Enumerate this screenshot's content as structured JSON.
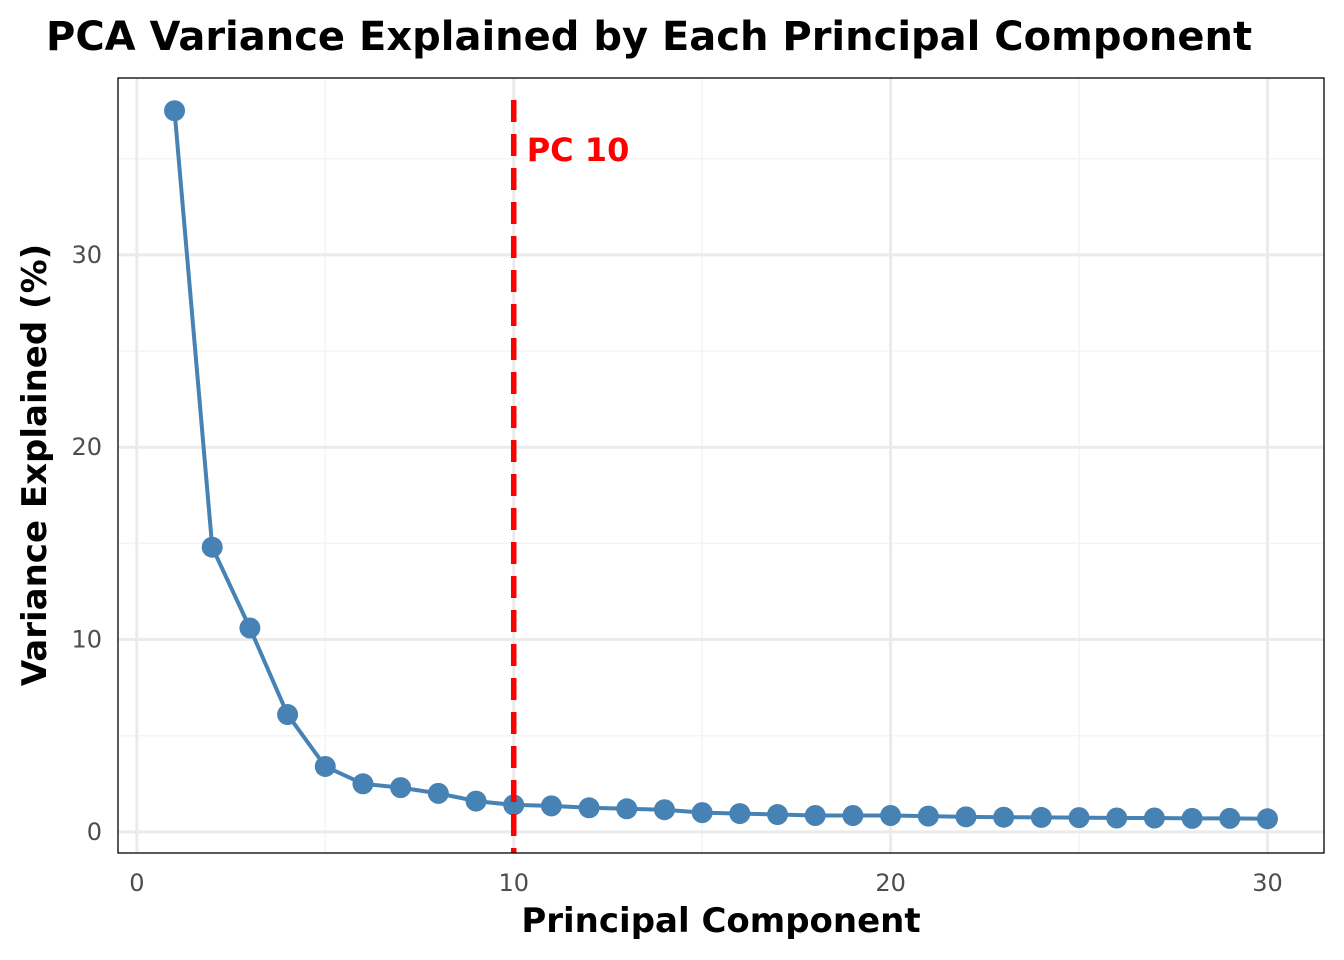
{
  "chart_data": {
    "type": "line",
    "title": "PCA Variance Explained by Each Principal Component",
    "xlabel": "Principal Component",
    "ylabel": "Variance Explained (%)",
    "xlim": [
      -0.5,
      31.5
    ],
    "ylim": [
      -1.1,
      39.2
    ],
    "xticks": [
      0,
      10,
      20,
      30
    ],
    "yticks": [
      0,
      10,
      20,
      30
    ],
    "grid": true,
    "legend": "none",
    "series": [
      {
        "color": "#4682b4",
        "x": [
          1,
          2,
          3,
          4,
          5,
          6,
          7,
          8,
          9,
          10,
          11,
          12,
          13,
          14,
          15,
          16,
          17,
          18,
          19,
          20,
          21,
          22,
          23,
          24,
          25,
          26,
          27,
          28,
          29,
          30
        ],
        "values": [
          37.5,
          14.8,
          10.6,
          6.1,
          3.4,
          2.5,
          2.3,
          2.0,
          1.6,
          1.4,
          1.35,
          1.25,
          1.2,
          1.15,
          1.0,
          0.95,
          0.9,
          0.85,
          0.85,
          0.85,
          0.82,
          0.78,
          0.76,
          0.75,
          0.74,
          0.72,
          0.72,
          0.7,
          0.7,
          0.68
        ]
      }
    ],
    "annotations": [
      {
        "type": "vline",
        "x": 10,
        "color": "#ff0000",
        "style": "dashed",
        "label": "PC 10"
      }
    ]
  }
}
